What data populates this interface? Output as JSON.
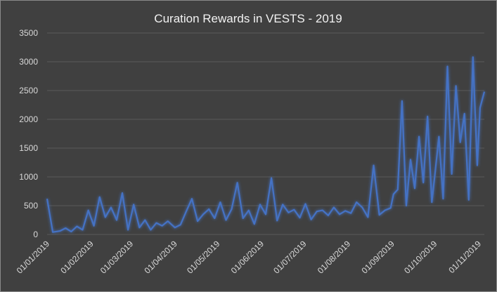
{
  "chart_data": {
    "type": "line",
    "title": "Curation Rewards in VESTS - 2019",
    "xlabel": "",
    "ylabel": "",
    "ylim": [
      0,
      3500
    ],
    "grid": true,
    "legend": "none",
    "colors": {
      "line": "#4472c4",
      "background": "#404040",
      "gridline": "#5a5a5a",
      "text": "#d9d9d9"
    },
    "y_ticks": [
      "0",
      "500",
      "1000",
      "1500",
      "2000",
      "2500",
      "3000",
      "3500"
    ],
    "y_tick_values": [
      0,
      500,
      1000,
      1500,
      2000,
      2500,
      3000,
      3500
    ],
    "x_ticks": [
      "01/01/2019",
      "01/02/2019",
      "01/03/2019",
      "01/04/2019",
      "01/05/2019",
      "01/06/2019",
      "01/07/2019",
      "01/08/2019",
      "01/09/2019",
      "01/10/2019",
      "01/11/2019"
    ],
    "x_tick_dates": [
      "2019-01-01",
      "2019-02-01",
      "2019-03-01",
      "2019-04-01",
      "2019-05-01",
      "2019-06-01",
      "2019-07-01",
      "2019-08-01",
      "2019-09-01",
      "2019-10-01",
      "2019-11-01"
    ],
    "x_range": [
      "2019-01-01",
      "2019-11-05"
    ],
    "series": [
      {
        "x": [
          "2019-01-01",
          "2019-01-05",
          "2019-01-10",
          "2019-01-14",
          "2019-01-18",
          "2019-01-22",
          "2019-01-26",
          "2019-01-30",
          "2019-02-03",
          "2019-02-07",
          "2019-02-11",
          "2019-02-15",
          "2019-02-19",
          "2019-02-23",
          "2019-02-27",
          "2019-03-03",
          "2019-03-07",
          "2019-03-11",
          "2019-03-15",
          "2019-03-19",
          "2019-03-23",
          "2019-03-27",
          "2019-04-01",
          "2019-04-05",
          "2019-04-09",
          "2019-04-13",
          "2019-04-17",
          "2019-04-21",
          "2019-04-25",
          "2019-04-29",
          "2019-05-03",
          "2019-05-07",
          "2019-05-11",
          "2019-05-15",
          "2019-05-19",
          "2019-05-23",
          "2019-05-27",
          "2019-05-31",
          "2019-06-04",
          "2019-06-08",
          "2019-06-12",
          "2019-06-16",
          "2019-06-20",
          "2019-06-24",
          "2019-06-28",
          "2019-07-02",
          "2019-07-06",
          "2019-07-10",
          "2019-07-14",
          "2019-07-18",
          "2019-07-22",
          "2019-07-26",
          "2019-07-30",
          "2019-08-03",
          "2019-08-07",
          "2019-08-11",
          "2019-08-15",
          "2019-08-19",
          "2019-08-23",
          "2019-08-27",
          "2019-08-31",
          "2019-09-02",
          "2019-09-05",
          "2019-09-08",
          "2019-09-11",
          "2019-09-14",
          "2019-09-17",
          "2019-09-20",
          "2019-09-23",
          "2019-09-26",
          "2019-09-29",
          "2019-10-01",
          "2019-10-04",
          "2019-10-07",
          "2019-10-10",
          "2019-10-13",
          "2019-10-16",
          "2019-10-19",
          "2019-10-22",
          "2019-10-25",
          "2019-10-28",
          "2019-10-31",
          "2019-11-02",
          "2019-11-05"
        ],
        "values": [
          620,
          40,
          60,
          110,
          50,
          140,
          80,
          420,
          150,
          650,
          300,
          470,
          250,
          720,
          80,
          520,
          120,
          250,
          80,
          200,
          150,
          230,
          120,
          170,
          400,
          620,
          230,
          350,
          440,
          280,
          560,
          250,
          440,
          900,
          280,
          420,
          180,
          520,
          350,
          980,
          240,
          520,
          380,
          430,
          290,
          530,
          260,
          400,
          420,
          330,
          470,
          350,
          410,
          370,
          560,
          470,
          300,
          1200,
          340,
          420,
          460,
          700,
          780,
          2320,
          500,
          1300,
          800,
          1700,
          900,
          2050,
          560,
          1000,
          1700,
          620,
          2920,
          1050,
          2580,
          1600,
          2100,
          600,
          3080,
          1200,
          2200,
          2480
        ]
      }
    ]
  }
}
